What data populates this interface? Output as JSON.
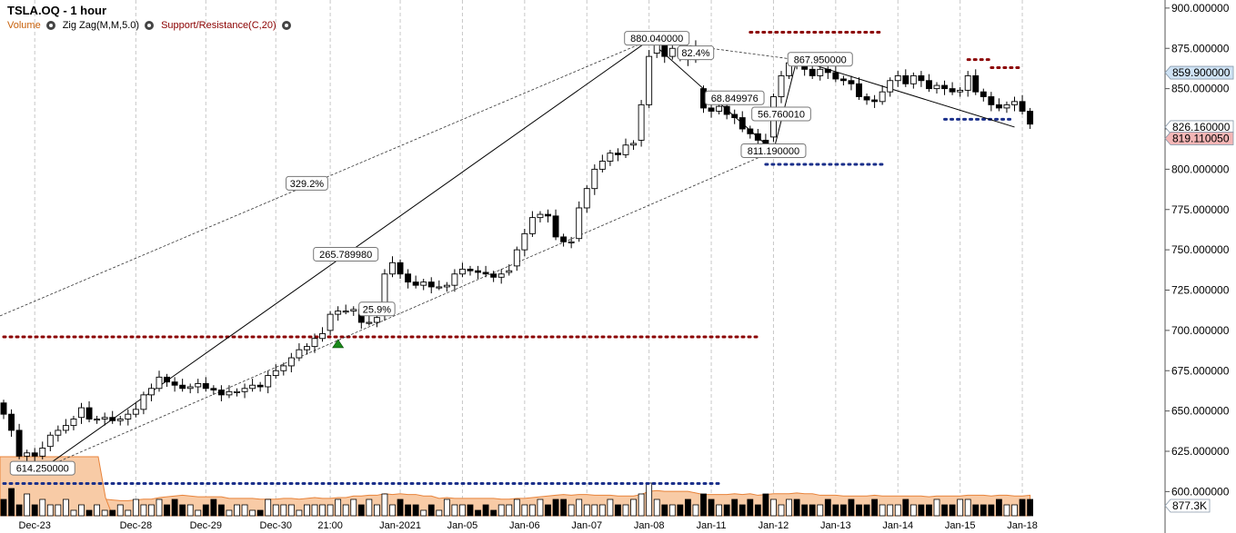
{
  "header": {
    "title": "TSLA.OQ - 1 hour",
    "studies": [
      {
        "label": "Volume",
        "color": "#c8600a",
        "settings_icon": "gear-icon"
      },
      {
        "label": "Zig Zag(M,M,5.0)",
        "color": "#000000",
        "settings_icon": "gear-icon"
      },
      {
        "label": "Support/Resistance(C,20)",
        "color": "#8b0000",
        "settings_icon": "gear-icon"
      }
    ]
  },
  "chart_data": {
    "type": "candlestick",
    "title": "TSLA.OQ - 1 hour",
    "yaxis": {
      "min": 585,
      "max": 905,
      "ticks": [
        600,
        625,
        650,
        675,
        700,
        725,
        750,
        775,
        800,
        825,
        850,
        875,
        900
      ],
      "tick_format": "6-decimal",
      "position": "right"
    },
    "xaxis_labels": [
      {
        "label": "Dec-23",
        "at": 4
      },
      {
        "label": "Dec-28",
        "at": 17
      },
      {
        "label": "Dec-29",
        "at": 26
      },
      {
        "label": "Dec-30",
        "at": 35
      },
      {
        "label": "21:00",
        "at": 42
      },
      {
        "label": "Jan-2021",
        "at": 51
      },
      {
        "label": "Jan-05",
        "at": 59
      },
      {
        "label": "Jan-06",
        "at": 67
      },
      {
        "label": "Jan-07",
        "at": 75
      },
      {
        "label": "Jan-08",
        "at": 83
      },
      {
        "label": "Jan-11",
        "at": 91
      },
      {
        "label": "Jan-12",
        "at": 99
      },
      {
        "label": "Jan-13",
        "at": 107
      },
      {
        "label": "Jan-14",
        "at": 115
      },
      {
        "label": "Jan-15",
        "at": 123
      },
      {
        "label": "Jan-18",
        "at": 131
      }
    ],
    "price_tags": [
      {
        "value": "859.900000",
        "y": 859.9,
        "color": "#cfe3f5"
      },
      {
        "value": "826.160000",
        "y": 826.16,
        "color": "#ffffff"
      },
      {
        "value": "819.110050",
        "y": 819.11,
        "color": "#f4b6b6"
      }
    ],
    "volume_tag": "877.3K",
    "watermark": "",
    "close": [
      648,
      638,
      622,
      624,
      622,
      627,
      635,
      638,
      641,
      645,
      652,
      645,
      645,
      646,
      644,
      645,
      648,
      651,
      660,
      664,
      671,
      668,
      666,
      664,
      665,
      667,
      664,
      663,
      660,
      662,
      662,
      664,
      666,
      665,
      672,
      675,
      678,
      683,
      688,
      690,
      695,
      698,
      710,
      712,
      712,
      713,
      705,
      705,
      708,
      735,
      742,
      735,
      730,
      728,
      730,
      727,
      727,
      728,
      735,
      738,
      737,
      736,
      735,
      733,
      735,
      737,
      750,
      760,
      770,
      772,
      771,
      758,
      755,
      755,
      776,
      788,
      800,
      805,
      810,
      809,
      815,
      816,
      840,
      870,
      878,
      870,
      875,
      870,
      868,
      876,
      838,
      836,
      839,
      834,
      832,
      825,
      822,
      818,
      815,
      845,
      858,
      866,
      865,
      862,
      858,
      862,
      860,
      856,
      855,
      853,
      845,
      843,
      842,
      848,
      855,
      858,
      853,
      858,
      855,
      850,
      852,
      850,
      848,
      849,
      858,
      848,
      845,
      840,
      838,
      840,
      842,
      836,
      828
    ],
    "open": [
      655,
      648,
      638,
      622,
      624,
      622,
      628,
      635,
      638,
      641,
      646,
      652,
      645,
      645,
      646,
      644,
      645,
      648,
      651,
      660,
      664,
      671,
      668,
      666,
      664,
      665,
      667,
      664,
      663,
      660,
      662,
      662,
      664,
      666,
      665,
      672,
      675,
      678,
      683,
      688,
      690,
      695,
      700,
      710,
      712,
      712,
      713,
      705,
      705,
      710,
      735,
      742,
      735,
      730,
      728,
      730,
      727,
      727,
      728,
      735,
      738,
      737,
      736,
      735,
      733,
      736,
      740,
      750,
      760,
      770,
      772,
      771,
      758,
      755,
      757,
      776,
      788,
      800,
      805,
      810,
      809,
      815,
      818,
      840,
      872,
      878,
      870,
      875,
      870,
      868,
      850,
      838,
      836,
      839,
      834,
      832,
      825,
      822,
      818,
      820,
      845,
      858,
      866,
      865,
      862,
      858,
      862,
      860,
      856,
      855,
      853,
      845,
      843,
      842,
      848,
      855,
      858,
      853,
      858,
      855,
      850,
      852,
      850,
      848,
      849,
      858,
      848,
      845,
      840,
      838,
      840,
      842,
      836
    ],
    "zigzag": [
      [
        5,
        614.25
      ],
      [
        83,
        880.04
      ],
      [
        99,
        811.19
      ],
      [
        102,
        867.95
      ],
      [
        130,
        826.16
      ]
    ],
    "zigzag_labels": [
      {
        "text": "614.250000",
        "at": 5,
        "y": 614.25
      },
      {
        "text": "265.789980",
        "at": 44,
        "y": 747
      },
      {
        "text": "880.040000",
        "at": 84,
        "y": 881
      },
      {
        "text": "82.4%",
        "at": 89,
        "y": 872
      },
      {
        "text": "867.950000",
        "at": 105,
        "y": 867.95
      },
      {
        "text": "68.849976",
        "at": 94,
        "y": 844
      },
      {
        "text": "56.760010",
        "at": 100,
        "y": 834
      },
      {
        "text": "811.190000",
        "at": 99,
        "y": 811.19
      },
      {
        "text": "329.2%",
        "at": 39,
        "y": 791
      },
      {
        "text": "25.9%",
        "at": 48,
        "y": 713
      }
    ],
    "support_resistance": [
      {
        "from": 0,
        "to": 97,
        "y": 696,
        "color": "#8b0000"
      },
      {
        "from": 0,
        "to": 92,
        "y": 605,
        "color": "#1a2f8a"
      },
      {
        "from": 96,
        "to": 113,
        "y": 885,
        "color": "#8b0000"
      },
      {
        "from": 98,
        "to": 113,
        "y": 803,
        "color": "#1a2f8a"
      },
      {
        "from": 124,
        "to": 127,
        "y": 868,
        "color": "#8b0000"
      },
      {
        "from": 127,
        "to": 131,
        "y": 863,
        "color": "#8b0000"
      },
      {
        "from": 121,
        "to": 130,
        "y": 831,
        "color": "#1a2f8a"
      }
    ],
    "volume": [
      3,
      5,
      2,
      4,
      2,
      3,
      2,
      2,
      3,
      1,
      2,
      1,
      2,
      1,
      1,
      2,
      1,
      3,
      2,
      2,
      3,
      2,
      3,
      2,
      2,
      1,
      2,
      3,
      2,
      1,
      2,
      2,
      1,
      1,
      3,
      2,
      2,
      2,
      1,
      2,
      2,
      2,
      2,
      3,
      2,
      3,
      2,
      3,
      2,
      4,
      2,
      3,
      2,
      2,
      1,
      2,
      1,
      3,
      2,
      2,
      2,
      1,
      2,
      1,
      2,
      2,
      3,
      2,
      2,
      3,
      2,
      3,
      3,
      2,
      3,
      2,
      2,
      2,
      3,
      2,
      2,
      3,
      4,
      6,
      3,
      2,
      2,
      2,
      3,
      2,
      4,
      3,
      2,
      2,
      3,
      2,
      3,
      2,
      4,
      3,
      2,
      3,
      3,
      2,
      2,
      2,
      3,
      2,
      2,
      3,
      2,
      2,
      3,
      2,
      2,
      2,
      3,
      2,
      2,
      2,
      3,
      2,
      2,
      3,
      3,
      2,
      2,
      2,
      3,
      2,
      2,
      3,
      3
    ]
  }
}
